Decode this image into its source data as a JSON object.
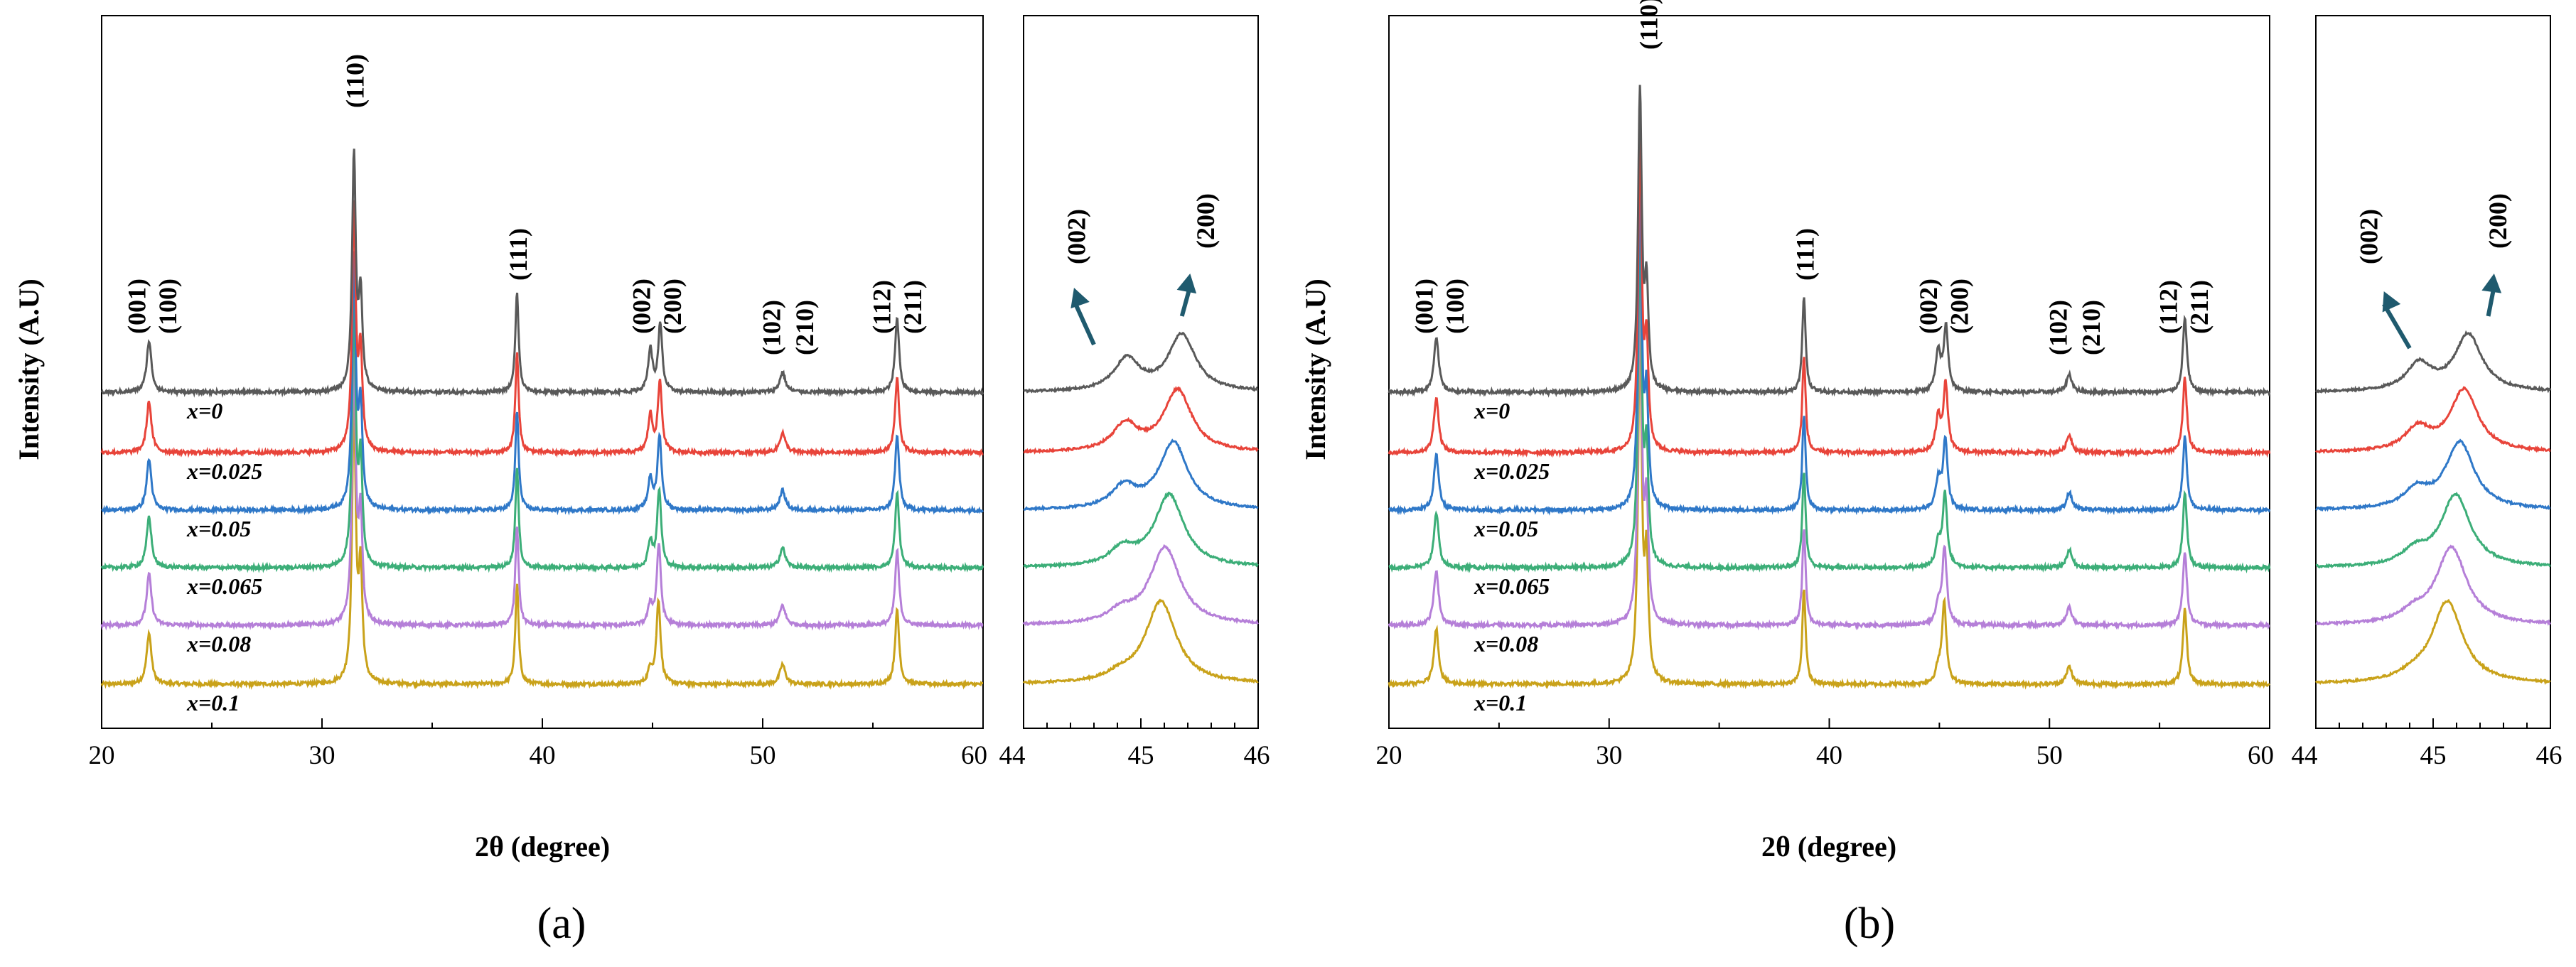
{
  "chart_data": [
    {
      "panel": "(a)",
      "type": "line",
      "xlabel": "2θ (degree)",
      "ylabel": "Intensity (A.U)",
      "main": {
        "xlim": [
          20,
          60
        ],
        "xticks": [
          20,
          30,
          40,
          50,
          60
        ]
      },
      "inset": {
        "xlim": [
          44,
          46
        ],
        "xticks": [
          44,
          45,
          46
        ]
      },
      "peak_labels": [
        {
          "label": "(001)",
          "x": 21.6
        },
        {
          "label": "(100)",
          "x": 23.0
        },
        {
          "label": "(110)",
          "x": 31.5
        },
        {
          "label": "(111)",
          "x": 38.9
        },
        {
          "label": "(002)",
          "x": 44.5
        },
        {
          "label": "(200)",
          "x": 45.9
        },
        {
          "label": "(102)",
          "x": 50.4
        },
        {
          "label": "(210)",
          "x": 51.9
        },
        {
          "label": "(112)",
          "x": 55.4
        },
        {
          "label": "(211)",
          "x": 56.8
        }
      ],
      "inset_labels": [
        {
          "label": "(002)",
          "x": 44.45
        },
        {
          "label": "(200)",
          "x": 45.55
        }
      ],
      "series": [
        {
          "name": "x=0",
          "color": "#595959"
        },
        {
          "name": "x=0.025",
          "color": "#e8443a"
        },
        {
          "name": "x=0.05",
          "color": "#2f78c8"
        },
        {
          "name": "x=0.065",
          "color": "#3cae78"
        },
        {
          "name": "x=0.08",
          "color": "#b57fd8"
        },
        {
          "name": "x=0.1",
          "color": "#c9a21a"
        }
      ]
    },
    {
      "panel": "(b)",
      "type": "line",
      "xlabel": "2θ (degree)",
      "ylabel": "Intensity (A.U)",
      "main": {
        "xlim": [
          20,
          60
        ],
        "xticks": [
          20,
          30,
          40,
          50,
          60
        ]
      },
      "inset": {
        "xlim": [
          44,
          46
        ],
        "xticks": [
          44,
          45,
          46
        ]
      },
      "peak_labels": [
        {
          "label": "(001)",
          "x": 21.6
        },
        {
          "label": "(100)",
          "x": 23.0
        },
        {
          "label": "(110)",
          "x": 31.8
        },
        {
          "label": "(111)",
          "x": 38.9
        },
        {
          "label": "(002)",
          "x": 44.5
        },
        {
          "label": "(200)",
          "x": 45.9
        },
        {
          "label": "(102)",
          "x": 50.4
        },
        {
          "label": "(210)",
          "x": 51.9
        },
        {
          "label": "(112)",
          "x": 55.4
        },
        {
          "label": "(211)",
          "x": 56.8
        }
      ],
      "inset_labels": [
        {
          "label": "(002)",
          "x": 44.45
        },
        {
          "label": "(200)",
          "x": 45.55
        }
      ],
      "series": [
        {
          "name": "x=0",
          "color": "#595959"
        },
        {
          "name": "x=0.025",
          "color": "#e8443a"
        },
        {
          "name": "x=0.05",
          "color": "#2f78c8"
        },
        {
          "name": "x=0.065",
          "color": "#3cae78"
        },
        {
          "name": "x=0.08",
          "color": "#b57fd8"
        },
        {
          "name": "x=0.1",
          "color": "#c9a21a"
        }
      ]
    }
  ]
}
